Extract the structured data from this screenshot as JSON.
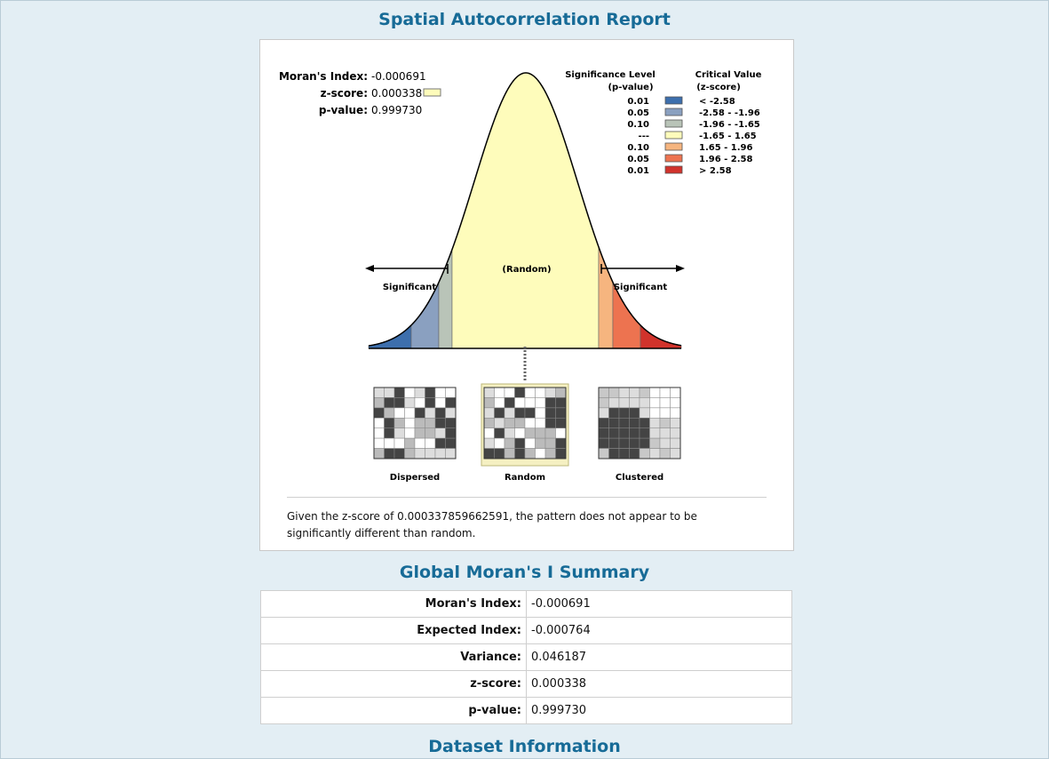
{
  "report": {
    "title": "Spatial Autocorrelation Report",
    "stats": [
      {
        "label": "Moran's Index:",
        "value": "-0.000691"
      },
      {
        "label": "z-score:",
        "value": "0.000338"
      },
      {
        "label": "p-value:",
        "value": "0.999730"
      }
    ],
    "legend": {
      "sig_header_1": "Significance Level",
      "sig_header_2": "(p-value)",
      "crit_header_1": "Critical Value",
      "crit_header_2": "(z-score)",
      "rows": [
        {
          "p": "0.01",
          "z": "< -2.58",
          "color": "#3d6fad"
        },
        {
          "p": "0.05",
          "z": "-2.58 - -1.96",
          "color": "#8aa0c0"
        },
        {
          "p": "0.10",
          "z": "-1.96 - -1.65",
          "color": "#b9c4b8"
        },
        {
          "p": "---",
          "z": "-1.65 - 1.65",
          "color": "#fefcbb"
        },
        {
          "p": "0.10",
          "z": "1.65 - 1.96",
          "color": "#f6b57f"
        },
        {
          "p": "0.05",
          "z": "1.96 - 2.58",
          "color": "#ed7350"
        },
        {
          "p": "0.01",
          "z": "> 2.58",
          "color": "#d1332c"
        }
      ]
    },
    "curve_labels": {
      "random": "(Random)",
      "significant_left": "Significant",
      "significant_right": "Significant"
    },
    "z_score_swatch_color": "#fefcbb",
    "thumbnails": [
      {
        "label": "Dispersed"
      },
      {
        "label": "Random",
        "highlighted": true
      },
      {
        "label": "Clustered"
      }
    ],
    "description": "Given the z-score of 0.000337859662591, the pattern does not appear to be significantly different than random."
  },
  "summary": {
    "title": "Global Moran's I Summary",
    "rows": [
      {
        "label": "Moran's Index:",
        "value": "-0.000691"
      },
      {
        "label": "Expected Index:",
        "value": "-0.000764"
      },
      {
        "label": "Variance:",
        "value": "0.046187"
      },
      {
        "label": "z-score:",
        "value": "0.000338"
      },
      {
        "label": "p-value:",
        "value": "0.999730"
      }
    ]
  },
  "dataset": {
    "title": "Dataset Information"
  }
}
